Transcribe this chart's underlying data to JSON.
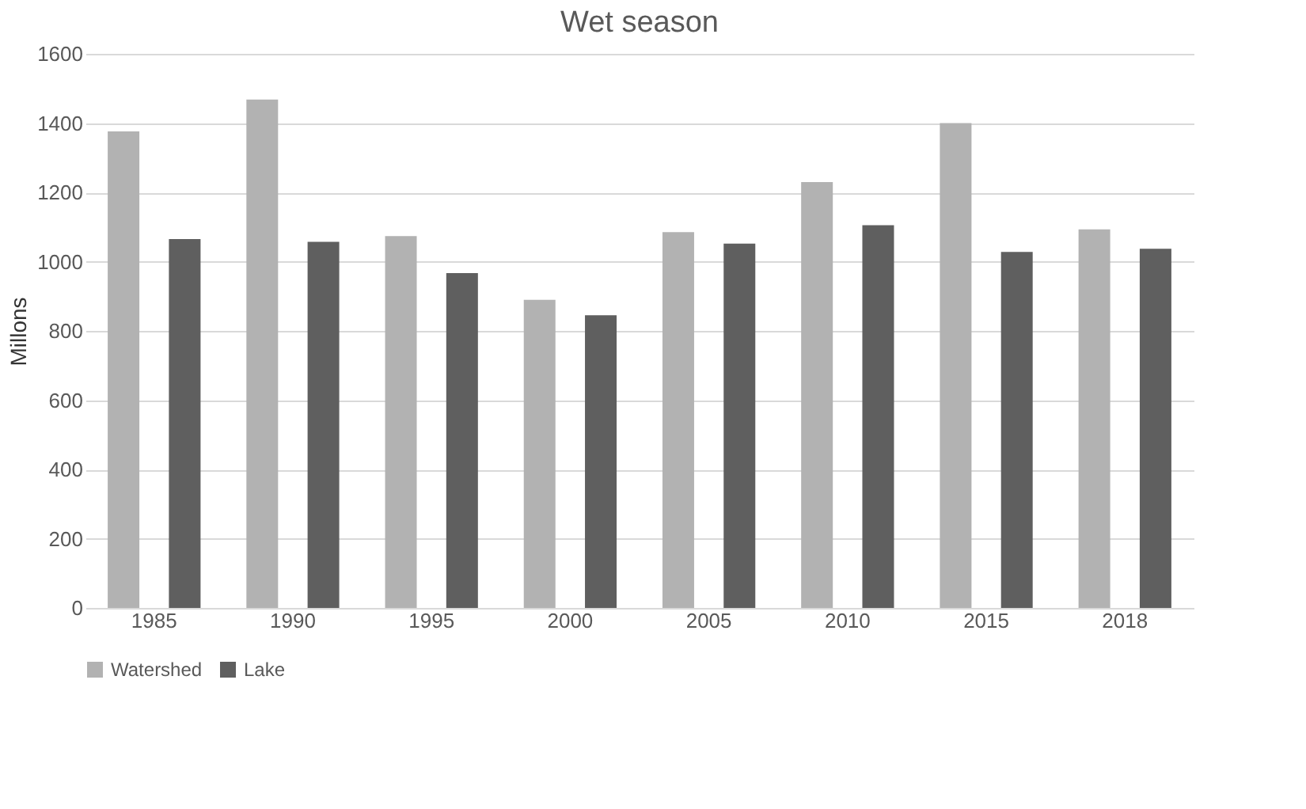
{
  "chart_data": {
    "type": "bar",
    "title": "Wet season",
    "ylabel": "Millons",
    "categories": [
      "1985",
      "1990",
      "1995",
      "2000",
      "2005",
      "2010",
      "2015",
      "2018"
    ],
    "series": [
      {
        "name": "Watershed",
        "color": "#b2b2b2",
        "values": [
          1376,
          1468,
          1074,
          890,
          1085,
          1230,
          1400,
          1093
        ]
      },
      {
        "name": "Lake",
        "color": "#5f5f5f",
        "values": [
          1065,
          1057,
          967,
          845,
          1052,
          1105,
          1028,
          1037
        ]
      }
    ],
    "ylim": [
      0,
      1600
    ],
    "yticks": [
      0,
      200,
      400,
      600,
      800,
      1000,
      1200,
      1400,
      1600
    ],
    "grid": "y",
    "legend": "bottom"
  }
}
